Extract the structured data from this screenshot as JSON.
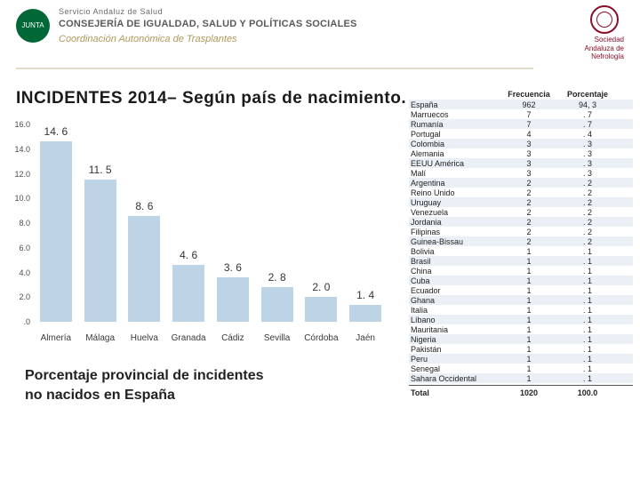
{
  "header": {
    "sas": "Servicio Andaluz de Salud",
    "consejeria": "CONSEJERÍA DE IGUALDAD, SALUD Y POLÍTICAS SOCIALES",
    "coord": "Coordinación Autonómica de Trasplantes",
    "sen_l1": "Sociedad",
    "sen_l2": "Andaluza de",
    "sen_l3": "Nefrología"
  },
  "title": "INCIDENTES 2014– Según país de nacimiento.",
  "subtitle_l1": "Porcentaje provincial de incidentes",
  "subtitle_l2": "no nacidos en España",
  "chart": {
    "ylim": [
      0,
      16
    ],
    "ytick_step": 2,
    "yticks": [
      "16.0",
      "14.0",
      "12.0",
      "10.0",
      "8.0",
      "6.0",
      "4.0",
      "2.0",
      ".0"
    ],
    "bar_color": "#bcd4e6",
    "categories": [
      "Almería",
      "Málaga",
      "Huelva",
      "Granada",
      "Cádiz",
      "Sevilla",
      "Córdoba",
      "Jaén"
    ],
    "values": [
      14.6,
      11.5,
      8.6,
      4.6,
      3.6,
      2.8,
      2.0,
      1.4
    ],
    "labels": [
      "14. 6",
      "11. 5",
      "8. 6",
      "4. 6",
      "3. 6",
      "2. 8",
      "2. 0",
      "1. 4"
    ]
  },
  "table": {
    "head_freq": "Frecuencia",
    "head_pct": "Porcentaje",
    "rows": [
      {
        "n": "España",
        "f": "962",
        "p": "94, 3"
      },
      {
        "n": "Marruecos",
        "f": "7",
        "p": ". 7"
      },
      {
        "n": "Rumanía",
        "f": "7",
        "p": ". 7"
      },
      {
        "n": "Portugal",
        "f": "4",
        "p": ". 4"
      },
      {
        "n": "Colombia",
        "f": "3",
        "p": ". 3"
      },
      {
        "n": "Alemania",
        "f": "3",
        "p": ". 3"
      },
      {
        "n": "EEUU América",
        "f": "3",
        "p": ". 3"
      },
      {
        "n": "Malí",
        "f": "3",
        "p": ". 3"
      },
      {
        "n": "Argentina",
        "f": "2",
        "p": ". 2"
      },
      {
        "n": "Reino Unido",
        "f": "2",
        "p": ". 2"
      },
      {
        "n": "Uruguay",
        "f": "2",
        "p": ". 2"
      },
      {
        "n": "Venezuela",
        "f": "2",
        "p": ". 2"
      },
      {
        "n": "Jordania",
        "f": "2",
        "p": ". 2"
      },
      {
        "n": "Filipinas",
        "f": "2",
        "p": ". 2"
      },
      {
        "n": "Guinea-Bissau",
        "f": "2",
        "p": ". 2"
      },
      {
        "n": "Bolivia",
        "f": "1",
        "p": ". 1"
      },
      {
        "n": "Brasil",
        "f": "1",
        "p": ". 1"
      },
      {
        "n": "China",
        "f": "1",
        "p": ". 1"
      },
      {
        "n": "Cuba",
        "f": "1",
        "p": ". 1"
      },
      {
        "n": "Ecuador",
        "f": "1",
        "p": ". 1"
      },
      {
        "n": "Ghana",
        "f": "1",
        "p": ". 1"
      },
      {
        "n": "Italia",
        "f": "1",
        "p": ". 1"
      },
      {
        "n": "Líbano",
        "f": "1",
        "p": ". 1"
      },
      {
        "n": "Mauritania",
        "f": "1",
        "p": ". 1"
      },
      {
        "n": "Nigeria",
        "f": "1",
        "p": ". 1"
      },
      {
        "n": "Pakistán",
        "f": "1",
        "p": ". 1"
      },
      {
        "n": "Peru",
        "f": "1",
        "p": ". 1"
      },
      {
        "n": "Senegal",
        "f": "1",
        "p": ". 1"
      },
      {
        "n": "Sahara Occidental",
        "f": "1",
        "p": ". 1"
      }
    ],
    "total_label": "Total",
    "total_f": "1020",
    "total_p": "100.0"
  }
}
